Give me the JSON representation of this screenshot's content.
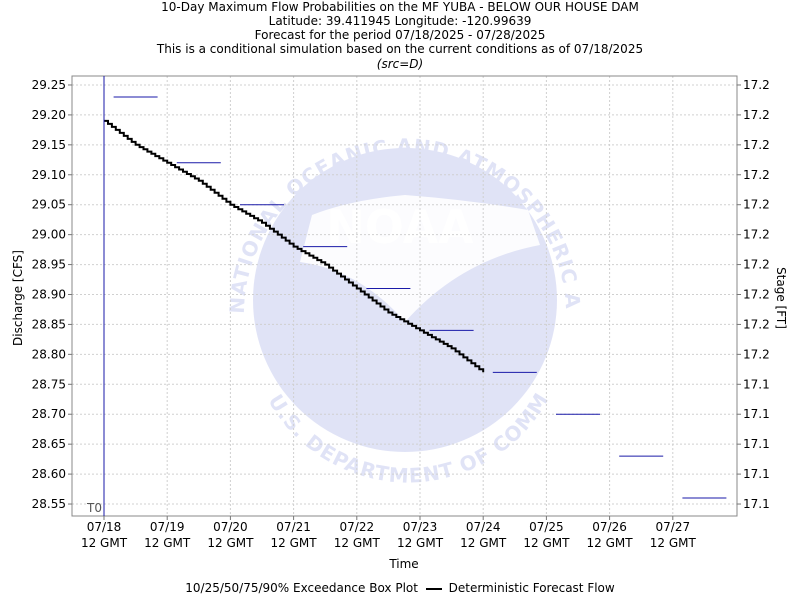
{
  "header": {
    "line1": "10-Day Maximum Flow Probabilities on the MF YUBA - BELOW OUR HOUSE DAM",
    "line2": "Latitude: 39.411945 Longitude: -120.99639",
    "line3": "Forecast for the period 07/18/2025 - 07/28/2025",
    "line4": "This is a conditional simulation based on the current conditions as of 07/18/2025",
    "line5": "(src=D)"
  },
  "watermark": {
    "top_text": "NATIONAL OCEANIC AND ATMOSPHERIC ADMINISTRATION",
    "center_text": "NOAA",
    "bottom_text": "U.S. DEPARTMENT OF COMMERCE",
    "color": "#c8cdf0"
  },
  "chart_data": {
    "type": "line",
    "title": "10-Day Maximum Flow Probabilities on the MF YUBA - BELOW OUR HOUSE DAM",
    "xlabel": "Time",
    "ylabel": "Discharge [CFS]",
    "y2label": "Stage [FT]",
    "ylim": [
      28.53,
      29.265
    ],
    "yticks": [
      28.55,
      28.6,
      28.65,
      28.7,
      28.75,
      28.8,
      28.85,
      28.9,
      28.95,
      29.0,
      29.05,
      29.1,
      29.15,
      29.2,
      29.25
    ],
    "ytick_labels": [
      "28.55",
      "28.60",
      "28.65",
      "28.70",
      "28.75",
      "28.80",
      "28.85",
      "28.90",
      "28.95",
      "29.00",
      "29.05",
      "29.10",
      "29.15",
      "29.20",
      "29.25"
    ],
    "y2tick_labels": [
      "17.1",
      "17.1",
      "17.1",
      "17.1",
      "17.1",
      "17.2",
      "17.2",
      "17.2",
      "17.2",
      "17.2",
      "17.2",
      "17.2",
      "17.2",
      "17.2",
      "17.2"
    ],
    "xlim_days": [
      -0.5,
      10.0
    ],
    "xticks_days": [
      0,
      1,
      2,
      3,
      4,
      5,
      6,
      7,
      8,
      9
    ],
    "xtick_dates": [
      "07/18",
      "07/19",
      "07/20",
      "07/21",
      "07/22",
      "07/23",
      "07/24",
      "07/25",
      "07/26",
      "07/27"
    ],
    "xtick_time": "12 GMT",
    "t0_label": "T0",
    "grid": true,
    "legend_position": "bottom-center",
    "series": [
      {
        "name": "Deterministic Forecast Flow",
        "color": "#000000",
        "x_days": [
          0,
          0.5,
          1,
          1.5,
          2,
          2.5,
          3,
          3.5,
          4,
          4.5,
          5,
          5.5,
          6
        ],
        "values": [
          29.19,
          29.15,
          29.12,
          29.09,
          29.05,
          29.02,
          28.98,
          28.95,
          28.91,
          28.87,
          28.84,
          28.81,
          28.77
        ]
      },
      {
        "name": "10/25/50/75/90% Exceedance Box Plot",
        "color": "#1a1aa8",
        "x_days": [
          0.5,
          1.5,
          2.5,
          3.5,
          4.5,
          5.5,
          6.5,
          7.5,
          8.5,
          9.5
        ],
        "values": [
          29.23,
          29.12,
          29.05,
          28.98,
          28.91,
          28.84,
          28.77,
          28.7,
          28.63,
          28.56
        ]
      }
    ]
  },
  "legend": {
    "boxplot_label": "10/25/50/75/90% Exceedance Box Plot",
    "forecast_label": "Deterministic Forecast Flow"
  }
}
